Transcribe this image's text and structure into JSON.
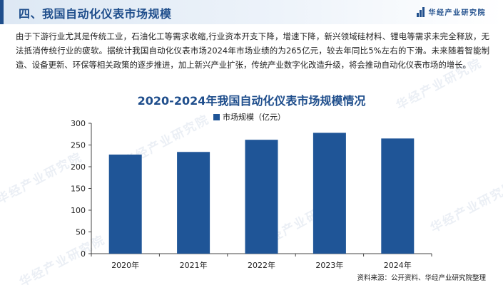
{
  "header": {
    "title": "四、我国自动化仪表市场规模",
    "brand": "华经产业研究院",
    "accent_color": "#1f4e8c"
  },
  "intro_text": "由于下游行业尤其是传统工业，石油化工等需求收缩,行业资本开支下降，增速下降，新兴领域硅材料、锂电等需求未完全释放，无法抵消传统行业的疲软。据统计我国自动化仪表市场2024年市场业绩的为265亿元，较去年同比5%左右的下滑。未来随着智能制造、设备更新、环保等相关政策的逐步推进，加上新兴产业扩张，传统产业数字化改造升级，将会推动自动化仪表市场的增长。",
  "watermark_text": "华经产业研究院",
  "source": "资料来源：公开资料、华经产业研究院整理",
  "chart_data": {
    "type": "bar",
    "title": "2020-2024年我国自动化仪表市场规模情况",
    "categories": [
      "2020年",
      "2021年",
      "2022年",
      "2023年",
      "2024年"
    ],
    "series": [
      {
        "name": "市场规模（亿元）",
        "values": [
          228,
          234,
          262,
          278,
          265
        ],
        "color": "#1f5597"
      }
    ],
    "ylim": [
      0,
      300
    ],
    "yticks": [
      0,
      50,
      100,
      150,
      200,
      250,
      300
    ],
    "grid": false,
    "legend_position": "top-center"
  }
}
